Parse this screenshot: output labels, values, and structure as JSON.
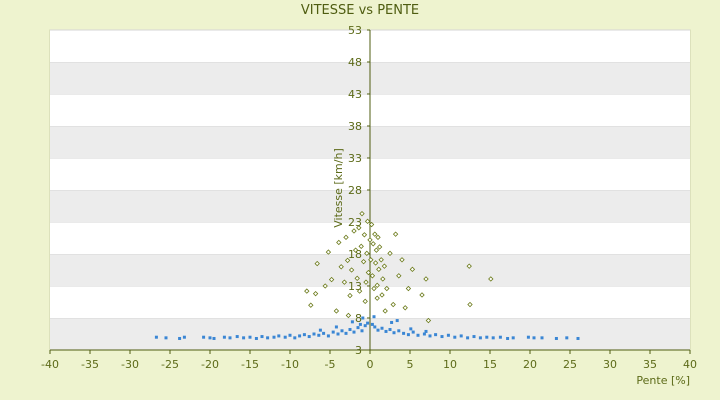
{
  "chart_data": {
    "type": "scatter",
    "title": "VITESSE vs PENTE",
    "xlabel": "Pente [%]",
    "ylabel": "Vitesse [km/h]",
    "xlim": [
      -40,
      40
    ],
    "ylim": [
      3,
      53
    ],
    "x_ticks": [
      "-40",
      "-35",
      "-30",
      "-25",
      "-20",
      "-15",
      "-10",
      "-5",
      "0",
      "5",
      "10",
      "15",
      "20",
      "25",
      "30",
      "35",
      "40"
    ],
    "y_ticks": [
      "3",
      "8",
      "13",
      "18",
      "23",
      "28",
      "33",
      "38",
      "43",
      "48",
      "53"
    ],
    "grid": "horizontal bands",
    "legend": "none",
    "series": [
      {
        "color": "#3a86d4",
        "marker": "small blue square",
        "points": [
          [
            -26.7,
            5.0
          ],
          [
            -25.5,
            4.9
          ],
          [
            -23.8,
            4.8
          ],
          [
            -23.2,
            5.0
          ],
          [
            -20.8,
            5.0
          ],
          [
            -20.0,
            4.9
          ],
          [
            -19.5,
            4.8
          ],
          [
            -18.2,
            5.0
          ],
          [
            -17.5,
            4.9
          ],
          [
            -16.6,
            5.1
          ],
          [
            -15.8,
            4.9
          ],
          [
            -15.0,
            5.0
          ],
          [
            -14.2,
            4.8
          ],
          [
            -13.5,
            5.1
          ],
          [
            -12.8,
            4.9
          ],
          [
            -12.0,
            5.0
          ],
          [
            -11.4,
            5.2
          ],
          [
            -10.6,
            5.0
          ],
          [
            -10.0,
            5.3
          ],
          [
            -9.4,
            4.9
          ],
          [
            -8.8,
            5.2
          ],
          [
            -8.2,
            5.4
          ],
          [
            -7.6,
            5.1
          ],
          [
            -7.0,
            5.5
          ],
          [
            -6.4,
            5.3
          ],
          [
            -5.8,
            5.6
          ],
          [
            -5.2,
            5.2
          ],
          [
            -4.6,
            5.8
          ],
          [
            -4.0,
            5.5
          ],
          [
            -3.5,
            6.0
          ],
          [
            -3.0,
            5.6
          ],
          [
            -2.5,
            6.2
          ],
          [
            -2.0,
            5.8
          ],
          [
            -1.5,
            6.5
          ],
          [
            -1.0,
            6.0
          ],
          [
            -0.6,
            6.8
          ],
          [
            -0.3,
            7.2
          ],
          [
            0.3,
            7.0
          ],
          [
            0.6,
            6.6
          ],
          [
            1.0,
            6.1
          ],
          [
            1.5,
            6.4
          ],
          [
            2.0,
            5.9
          ],
          [
            2.5,
            6.2
          ],
          [
            3.0,
            5.7
          ],
          [
            3.6,
            6.0
          ],
          [
            4.2,
            5.6
          ],
          [
            4.8,
            5.4
          ],
          [
            5.4,
            5.8
          ],
          [
            6.0,
            5.3
          ],
          [
            6.8,
            5.5
          ],
          [
            7.5,
            5.2
          ],
          [
            8.2,
            5.4
          ],
          [
            9.0,
            5.1
          ],
          [
            9.8,
            5.3
          ],
          [
            10.6,
            5.0
          ],
          [
            11.4,
            5.2
          ],
          [
            12.2,
            4.9
          ],
          [
            13.0,
            5.1
          ],
          [
            13.8,
            4.9
          ],
          [
            14.6,
            5.0
          ],
          [
            15.4,
            4.9
          ],
          [
            16.3,
            5.0
          ],
          [
            17.2,
            4.8
          ],
          [
            17.9,
            4.9
          ],
          [
            19.8,
            5.0
          ],
          [
            20.5,
            4.9
          ],
          [
            21.5,
            4.9
          ],
          [
            23.3,
            4.8
          ],
          [
            24.6,
            4.9
          ],
          [
            26.0,
            4.8
          ],
          [
            2.7,
            7.3
          ],
          [
            3.4,
            7.6
          ],
          [
            -2.2,
            7.4
          ],
          [
            -0.9,
            8.0
          ],
          [
            0.5,
            8.2
          ],
          [
            -4.2,
            6.6
          ],
          [
            5.1,
            6.3
          ],
          [
            -6.2,
            6.1
          ],
          [
            7.0,
            5.9
          ],
          [
            -1.2,
            7.0
          ]
        ]
      },
      {
        "color": "#6b7a1a",
        "marker": "small olive diamond",
        "points": [
          [
            -7.9,
            12.2
          ],
          [
            -6.8,
            11.8
          ],
          [
            -7.4,
            10.0
          ],
          [
            -6.6,
            16.5
          ],
          [
            -5.2,
            18.3
          ],
          [
            -4.8,
            14.0
          ],
          [
            -5.6,
            13.0
          ],
          [
            -4.2,
            9.1
          ],
          [
            -3.9,
            19.8
          ],
          [
            -3.6,
            16.0
          ],
          [
            -3.2,
            13.6
          ],
          [
            -3.0,
            20.6
          ],
          [
            -2.8,
            17.0
          ],
          [
            -2.5,
            11.5
          ],
          [
            -2.3,
            15.5
          ],
          [
            -2.0,
            21.6
          ],
          [
            -1.8,
            18.6
          ],
          [
            -1.6,
            14.2
          ],
          [
            -1.4,
            22.1
          ],
          [
            -1.3,
            12.2
          ],
          [
            -1.1,
            19.2
          ],
          [
            -1.0,
            24.3
          ],
          [
            -0.8,
            16.8
          ],
          [
            -0.7,
            21.0
          ],
          [
            -0.5,
            13.6
          ],
          [
            -0.4,
            18.1
          ],
          [
            -0.3,
            23.1
          ],
          [
            -0.2,
            15.1
          ],
          [
            0.0,
            20.2
          ],
          [
            0.1,
            17.1
          ],
          [
            0.2,
            22.6
          ],
          [
            0.3,
            14.6
          ],
          [
            0.4,
            19.6
          ],
          [
            0.5,
            12.6
          ],
          [
            0.6,
            21.1
          ],
          [
            0.7,
            16.6
          ],
          [
            0.8,
            18.6
          ],
          [
            0.9,
            13.1
          ],
          [
            1.0,
            20.6
          ],
          [
            1.1,
            15.6
          ],
          [
            1.2,
            19.1
          ],
          [
            1.4,
            17.1
          ],
          [
            1.5,
            11.6
          ],
          [
            1.6,
            14.1
          ],
          [
            1.8,
            16.1
          ],
          [
            2.1,
            12.6
          ],
          [
            2.5,
            18.1
          ],
          [
            2.9,
            10.1
          ],
          [
            3.2,
            21.1
          ],
          [
            3.6,
            14.6
          ],
          [
            4.0,
            17.1
          ],
          [
            4.4,
            9.6
          ],
          [
            4.8,
            12.6
          ],
          [
            5.3,
            15.6
          ],
          [
            6.5,
            11.6
          ],
          [
            7.0,
            14.1
          ],
          [
            7.3,
            7.6
          ],
          [
            12.4,
            16.1
          ],
          [
            12.5,
            10.1
          ],
          [
            15.1,
            14.1
          ],
          [
            -2.7,
            8.4
          ],
          [
            1.9,
            9.1
          ],
          [
            -0.6,
            10.6
          ],
          [
            0.9,
            11.1
          ]
        ]
      }
    ]
  }
}
